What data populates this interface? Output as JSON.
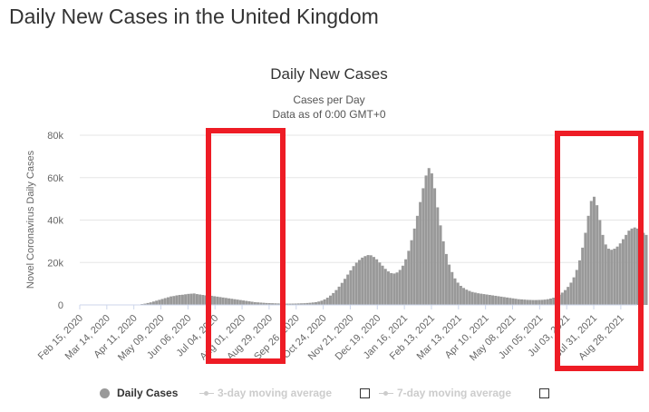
{
  "page": {
    "title": "Daily New Cases in the United Kingdom"
  },
  "chart_data": {
    "type": "bar",
    "title": "Daily New Cases",
    "subtitle_lines": [
      "Cases per Day",
      "Data as of 0:00 GMT+0"
    ],
    "ylabel": "Novel Coronavirus Daily Cases",
    "xlabel": "",
    "ylim": [
      0,
      80000
    ],
    "yticks": [
      0,
      20000,
      40000,
      60000,
      80000
    ],
    "ytick_labels": [
      "0",
      "20k",
      "40k",
      "60k",
      "80k"
    ],
    "x_start": "2020-02-15",
    "x_end": "2021-09-14",
    "xtick_labels": [
      "Feb 15, 2020",
      "Mar 14, 2020",
      "Apr 11, 2020",
      "May 09, 2020",
      "Jun 06, 2020",
      "Jul 04, 2020",
      "Aug 01, 2020",
      "Aug 29, 2020",
      "Sep 26, 2020",
      "Oct 24, 2020",
      "Nov 21, 2020",
      "Dec 19, 2020",
      "Jan 16, 2021",
      "Feb 13, 2021",
      "Mar 13, 2021",
      "Apr 10, 2021",
      "May 08, 2021",
      "Jun 05, 2021",
      "Jul 03, 2021",
      "Jul 31, 2021",
      "Aug 28, 2021"
    ],
    "bar_color": "#999999",
    "grid": true,
    "series": [
      {
        "name": "Daily Cases",
        "values": [
          0,
          0,
          0,
          0,
          0,
          0,
          0,
          0,
          0,
          0,
          0,
          0,
          0,
          0,
          0,
          0,
          0,
          0,
          0,
          0,
          200,
          400,
          600,
          900,
          1200,
          1600,
          2000,
          2400,
          2800,
          3200,
          3600,
          4000,
          4200,
          4500,
          4700,
          4800,
          5000,
          5200,
          5300,
          5400,
          5100,
          4900,
          4700,
          4500,
          4400,
          4300,
          4100,
          3900,
          3700,
          3500,
          3300,
          3100,
          2900,
          2700,
          2500,
          2300,
          2100,
          1900,
          1700,
          1500,
          1300,
          1200,
          1100,
          1000,
          900,
          850,
          800,
          750,
          700,
          650,
          600,
          600,
          600,
          620,
          650,
          700,
          750,
          800,
          900,
          1000,
          1150,
          1300,
          1600,
          2000,
          2600,
          3400,
          4400,
          5600,
          7000,
          8600,
          10400,
          12300,
          14300,
          16300,
          18300,
          19900,
          21200,
          22300,
          23000,
          23500,
          23400,
          22600,
          21500,
          20000,
          18500,
          17000,
          15800,
          15000,
          14800,
          15300,
          16500,
          18500,
          21500,
          25500,
          30500,
          36000,
          42000,
          48500,
          55000,
          61000,
          64500,
          62000,
          55000,
          46000,
          37500,
          30000,
          24000,
          19000,
          15500,
          12500,
          10500,
          9000,
          8000,
          7200,
          6600,
          6100,
          5800,
          5500,
          5300,
          5100,
          4900,
          4700,
          4500,
          4300,
          4100,
          3900,
          3700,
          3500,
          3300,
          3100,
          2900,
          2700,
          2600,
          2500,
          2400,
          2350,
          2300,
          2300,
          2350,
          2400,
          2500,
          2700,
          3000,
          3400,
          4000,
          4800,
          5800,
          7000,
          8500,
          10500,
          13000,
          16500,
          21000,
          27000,
          34000,
          42000,
          49000,
          51000,
          47000,
          40000,
          33000,
          28500,
          26500,
          26000,
          26500,
          27500,
          29000,
          31000,
          33000,
          35000,
          36000,
          36500,
          36000,
          35000,
          34000,
          33000
        ]
      }
    ],
    "legend": {
      "placement": "bottom",
      "entries": [
        {
          "name": "Daily Cases",
          "active": true
        },
        {
          "name": "3-day moving average",
          "active": false
        },
        {
          "name": "7-day moving average",
          "active": false
        }
      ]
    }
  },
  "annotations": {
    "highlight_color": "#ee1c25",
    "boxes": [
      {
        "from": "Jul 04, 2020",
        "to": "Sep 26, 2020"
      },
      {
        "from": "Jul 03, 2021",
        "to": "Sep 14, 2021"
      }
    ]
  }
}
